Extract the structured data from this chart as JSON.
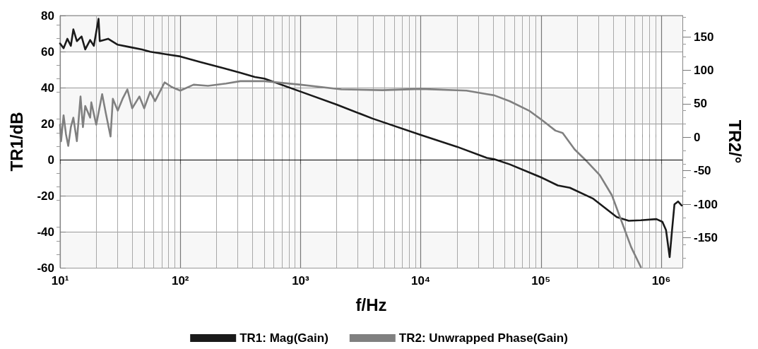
{
  "chart_data": {
    "type": "line",
    "xlabel": "f/Hz",
    "ylabel": "TR1/dB",
    "y2label": "TR2/°",
    "log": "x",
    "xlim": [
      10,
      1500000
    ],
    "xticks": [
      {
        "value": 10,
        "label": "10¹"
      },
      {
        "value": 100,
        "label": "10²"
      },
      {
        "value": 1000,
        "label": "10³"
      },
      {
        "value": 10000,
        "label": "10⁴"
      },
      {
        "value": 100000,
        "label": "10⁵"
      },
      {
        "value": 1000000,
        "label": "10⁶"
      }
    ],
    "ylim": [
      -60,
      80
    ],
    "yticks": [
      -60,
      -40,
      -20,
      0,
      20,
      40,
      60,
      80
    ],
    "y2lim": [
      -195,
      182
    ],
    "y2ticks": [
      -150,
      -100,
      -50,
      0,
      50,
      100,
      150
    ],
    "grid": true,
    "legend": "bottom",
    "marker": "none",
    "line_style": "solid",
    "ref_lines": [
      {
        "axis": "y",
        "value": 0,
        "color": "#000000"
      }
    ],
    "series": [
      {
        "name": "TR1: Mag(Gain)",
        "color": "#1a1a1a",
        "x": [
          10,
          10.7,
          11.5,
          12.3,
          12.9,
          13.8,
          15.1,
          16.2,
          17.8,
          19.1,
          20.9,
          21.4,
          25.1,
          30.2,
          38,
          47.9,
          56.2,
          74.1,
          100,
          148,
          229,
          316,
          417,
          501,
          1000,
          1995,
          3981,
          10000,
          19950,
          35480,
          40740,
          54950,
          100000,
          138000,
          173800,
          269200,
          426600,
          537000,
          676100,
          912000,
          1023000,
          1096000,
          1175000,
          1230000,
          1288000,
          1380000,
          1479000
        ],
        "values": [
          64.5,
          61.9,
          67.1,
          63.2,
          72.3,
          65.8,
          68.4,
          61.2,
          66.4,
          63.2,
          78.2,
          65.8,
          67.1,
          63.8,
          62.5,
          61.2,
          59.9,
          58.6,
          57.3,
          54.1,
          50.8,
          48.2,
          45.9,
          45,
          37.8,
          30.6,
          22.8,
          13.7,
          7.2,
          1,
          0.3,
          -2.6,
          -9.8,
          -14.3,
          -15.6,
          -21.5,
          -31.9,
          -33.9,
          -33.6,
          -33,
          -34.5,
          -39.1,
          -54.1,
          -39.1,
          -24.8,
          -23.2,
          -25.4
        ]
      },
      {
        "name": "TR2: Unwrapped Phase(Gain)",
        "color": "#808080",
        "axis": "y2",
        "x": [
          10,
          10.2,
          10.7,
          11.2,
          11.7,
          12.3,
          12.9,
          13.8,
          14.8,
          15.5,
          16.2,
          17.8,
          18.2,
          20,
          22.4,
          24,
          26.3,
          27.5,
          30.2,
          33.1,
          36.3,
          39.8,
          45.7,
          50.1,
          56.2,
          61.7,
          74.1,
          85.1,
          100,
          129,
          170,
          240,
          316,
          417,
          501,
          1000,
          2188,
          4786,
          10000,
          23990,
          35480,
          40740,
          54950,
          79430,
          104700,
          131800,
          151400,
          190500,
          234400,
          309000,
          389000,
          467700,
          562300,
          676100
        ],
        "values": [
          18.8,
          -5.8,
          32.9,
          4.7,
          -12.8,
          15.3,
          29.4,
          -5.8,
          61,
          15.3,
          46.9,
          29.4,
          52.2,
          18.8,
          64.5,
          36.4,
          1.2,
          57.5,
          39.9,
          57.5,
          71.6,
          43.4,
          61,
          43.4,
          68.1,
          54,
          82.1,
          75.1,
          69.8,
          78.6,
          76.9,
          80.4,
          83.9,
          83.9,
          83.9,
          78.6,
          71.6,
          70.5,
          72.3,
          69.8,
          64.5,
          62.8,
          54,
          39.9,
          24.1,
          10,
          6.5,
          -18.1,
          -33.9,
          -56.8,
          -86.8,
          -125.5,
          -164.2,
          -194
        ]
      }
    ]
  }
}
